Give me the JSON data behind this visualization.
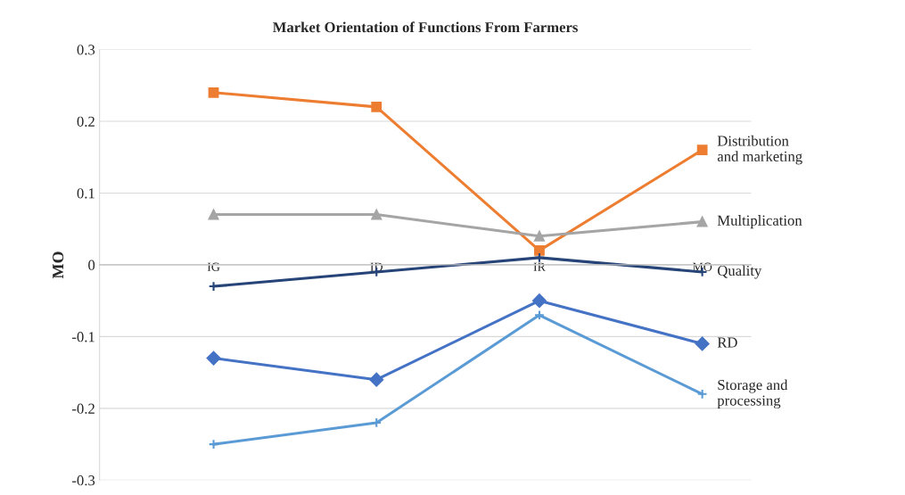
{
  "chart_data": {
    "type": "line",
    "title": "Market Orientation of Functions From Farmers",
    "ylabel": "MO",
    "categories": [
      "IG",
      "ID",
      "IR",
      "MO"
    ],
    "series": [
      {
        "name": "Distribution and marketing",
        "color": "#ed7d31",
        "marker": "square",
        "values": [
          0.24,
          0.22,
          0.02,
          0.16
        ]
      },
      {
        "name": "Multiplication",
        "color": "#a5a5a5",
        "marker": "triangle",
        "values": [
          0.07,
          0.07,
          0.04,
          0.06
        ]
      },
      {
        "name": "Quality",
        "color": "#264478",
        "marker": "cross",
        "values": [
          -0.03,
          -0.01,
          0.01,
          -0.01
        ]
      },
      {
        "name": "RD",
        "color": "#4472c4",
        "marker": "diamond",
        "values": [
          -0.13,
          -0.16,
          -0.05,
          -0.11
        ]
      },
      {
        "name": "Storage and processing",
        "color": "#5b9bd5",
        "marker": "cross",
        "values": [
          -0.25,
          -0.22,
          -0.07,
          -0.18
        ]
      }
    ],
    "ylim": [
      -0.3,
      0.3
    ],
    "yticks": [
      -0.3,
      -0.2,
      -0.1,
      0,
      0.1,
      0.2,
      0.3
    ],
    "grid": "y",
    "legend": false
  }
}
